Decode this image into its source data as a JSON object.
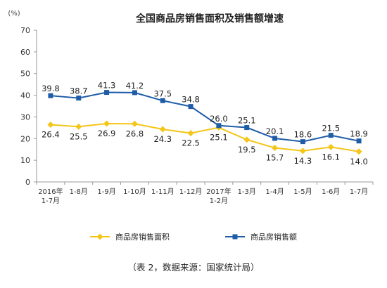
{
  "chart_data": {
    "type": "line",
    "title": "全国商品房销售面积及销售额增速",
    "ylabel": "(%)",
    "xlabel": "",
    "ylim": [
      0,
      70
    ],
    "yticks": [
      0,
      10,
      20,
      30,
      40,
      50,
      60,
      70
    ],
    "grid": false,
    "legend_position": "bottom",
    "categories": [
      [
        "2016年",
        "1-7月"
      ],
      [
        "1-8月"
      ],
      [
        "1-9月"
      ],
      [
        "1-10月"
      ],
      [
        "1-11月"
      ],
      [
        "1-12月"
      ],
      [
        "2017年",
        "1-2月"
      ],
      [
        "1-3月"
      ],
      [
        "1-4月"
      ],
      [
        "1-5月"
      ],
      [
        "1-6月"
      ],
      [
        "1-7月"
      ]
    ],
    "series": [
      {
        "name": "商品房销售面积",
        "color": "#f5c518",
        "marker": "diamond",
        "values": [
          26.4,
          25.5,
          26.9,
          26.8,
          24.3,
          22.5,
          25.1,
          19.5,
          15.7,
          14.3,
          16.1,
          14.0
        ],
        "labels": [
          "26.4",
          "25.5",
          "26.9",
          "26.8",
          "24.3",
          "22.5",
          "25.1",
          "19.5",
          "15.7",
          "14.3",
          "16.1",
          "14.0"
        ]
      },
      {
        "name": "商品房销售额",
        "color": "#1f5ca8",
        "marker": "square",
        "values": [
          39.8,
          38.7,
          41.3,
          41.2,
          37.5,
          34.8,
          26.0,
          25.1,
          20.1,
          18.6,
          21.5,
          18.9
        ],
        "labels": [
          "39.8",
          "38.7",
          "41.3",
          "41.2",
          "37.5",
          "34.8",
          "26.0",
          "25.1",
          "20.1",
          "18.6",
          "21.5",
          "18.9"
        ]
      }
    ]
  },
  "caption": "（表 2，数据来源：国家统计局）"
}
